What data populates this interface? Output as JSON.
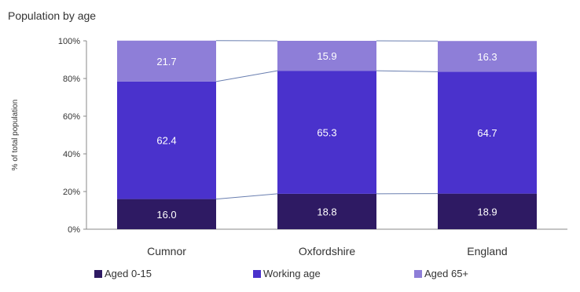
{
  "chart_data": {
    "type": "bar",
    "stacked": true,
    "title": "Population by age",
    "ylabel": "% of total population",
    "xlabel": "",
    "ylim": [
      0,
      100
    ],
    "yticks": [
      "0%",
      "20%",
      "40%",
      "60%",
      "80%",
      "100%"
    ],
    "categories": [
      "Cumnor",
      "Oxfordshire",
      "England"
    ],
    "series": [
      {
        "name": "Aged 0-15",
        "color": "#2e1a63",
        "values": [
          16.0,
          18.8,
          18.9
        ],
        "labels": [
          "16.0",
          "18.8",
          "18.9"
        ]
      },
      {
        "name": "Working age",
        "color": "#4a32cc",
        "values": [
          62.4,
          65.3,
          64.7
        ],
        "labels": [
          "62.4",
          "65.3",
          "64.7"
        ]
      },
      {
        "name": "Aged 65+",
        "color": "#8e7ed8",
        "values": [
          21.7,
          15.9,
          16.3
        ],
        "labels": [
          "21.7",
          "15.9",
          "16.3"
        ]
      }
    ],
    "connector_lines": true,
    "grid": false,
    "legend_position": "bottom"
  }
}
